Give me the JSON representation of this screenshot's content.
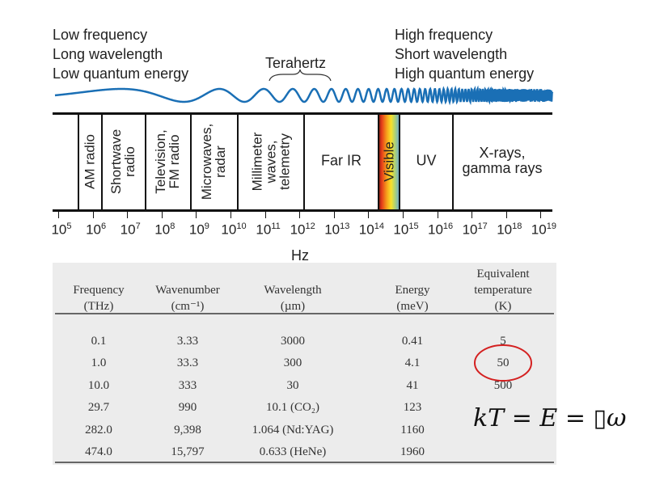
{
  "left_label": [
    "Low frequency",
    "Long wavelength",
    "Low quantum energy"
  ],
  "right_label": [
    "High frequency",
    "Short wavelength",
    "High quantum energy"
  ],
  "terahertz_label": "Terahertz",
  "bands": [
    {
      "name": "AM radio",
      "vertical": true
    },
    {
      "name": "Shortwave\nradio",
      "vertical": true
    },
    {
      "name": "Television,\nFM radio",
      "vertical": true
    },
    {
      "name": "Microwaves,\nradar",
      "vertical": true
    },
    {
      "name": "Millimeter\nwaves,\ntelemetry",
      "vertical": true
    },
    {
      "name": "Far IR",
      "vertical": false
    },
    {
      "name": "Visible",
      "vertical": true
    },
    {
      "name": "UV",
      "vertical": false
    },
    {
      "name": "X-rays,\ngamma rays",
      "vertical": false
    }
  ],
  "axis": {
    "base": "10",
    "exponents": [
      "5",
      "6",
      "7",
      "8",
      "9",
      "10",
      "11",
      "12",
      "13",
      "14",
      "15",
      "16",
      "17",
      "18",
      "19"
    ],
    "unit": "Hz"
  },
  "table": {
    "headers": [
      "Frequency\n(THz)",
      "Wavenumber\n(cm⁻¹)",
      "Wavelength\n(µm)",
      "Energy\n(meV)",
      "Equivalent\ntemperature\n(K)"
    ],
    "rows": [
      [
        "0.1",
        "3.33",
        "3000",
        "0.41",
        "5"
      ],
      [
        "1.0",
        "33.3",
        "300",
        "4.1",
        "50"
      ],
      [
        "10.0",
        "333",
        "30",
        "41",
        "500"
      ],
      [
        "29.7",
        "990",
        "10.1 (CO₂)",
        "123",
        ""
      ],
      [
        "282.0",
        "9,398",
        "1.064 (Nd:YAG)",
        "1160",
        ""
      ],
      [
        "474.0",
        "15,797",
        "0.633 (HeNe)",
        "1960",
        ""
      ]
    ],
    "highlighted": "50"
  },
  "formula": "kT = E = ▯ω",
  "colors": {
    "wave": "#1a6fb5",
    "highlight": "#d42020"
  }
}
